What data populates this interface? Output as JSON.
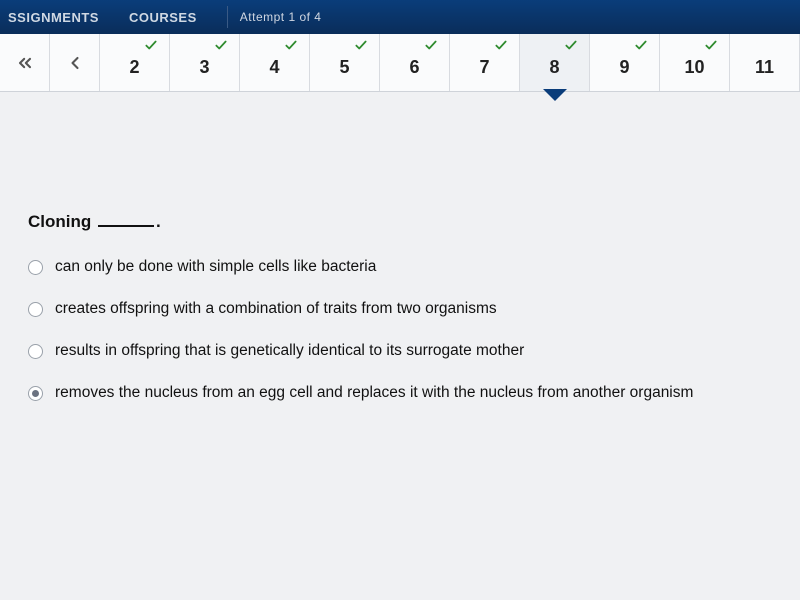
{
  "header": {
    "tabs": [
      "SSIGNMENTS",
      "COURSES"
    ],
    "attempt": "Attempt 1 of 4"
  },
  "qnav": {
    "items": [
      {
        "num": "2",
        "checked": true,
        "current": false
      },
      {
        "num": "3",
        "checked": true,
        "current": false
      },
      {
        "num": "4",
        "checked": true,
        "current": false
      },
      {
        "num": "5",
        "checked": true,
        "current": false
      },
      {
        "num": "6",
        "checked": true,
        "current": false
      },
      {
        "num": "7",
        "checked": true,
        "current": false
      },
      {
        "num": "8",
        "checked": true,
        "current": true
      },
      {
        "num": "9",
        "checked": true,
        "current": false
      },
      {
        "num": "10",
        "checked": true,
        "current": false
      },
      {
        "num": "11",
        "checked": false,
        "current": false
      }
    ]
  },
  "question": {
    "stem_before": "Cloning ",
    "stem_after": "."
  },
  "options": [
    {
      "text": "can only be done with simple cells like bacteria",
      "selected": false
    },
    {
      "text": "creates offspring with a combination of traits from two organisms",
      "selected": false
    },
    {
      "text": "results in offspring that is genetically identical to its surrogate mother",
      "selected": false
    },
    {
      "text": "removes the nucleus from an egg cell and replaces it with the nucleus from another organism",
      "selected": true
    }
  ],
  "colors": {
    "header_bg": "#0a3d7a",
    "check": "#2e8b2e",
    "page_bg": "#f0f1f3"
  }
}
